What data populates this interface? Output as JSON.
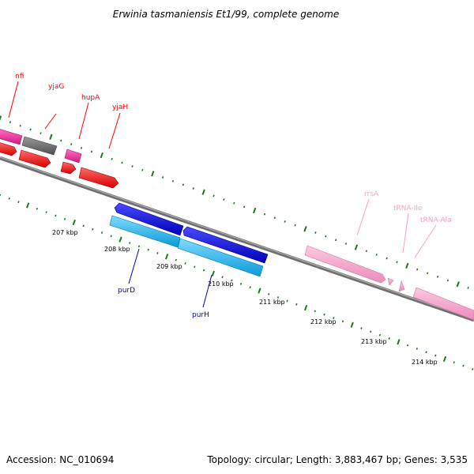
{
  "title": "Erwinia tasmaniensis Et1/99, complete genome",
  "footer": {
    "accession": "Accession: NC_010694",
    "summary": "Topology: circular; Length: 3,883,467 bp; Genes: 3,535"
  },
  "colors": {
    "backbone": "#808080",
    "tick_marks": "#1a7a1a",
    "forward_gene": "#ff1010",
    "reverse_gene": "#0a0adc",
    "cyan_gene": "#10b4ee",
    "pseudo_gene": "#6a6a6a",
    "magenta_gene": "#ee2c96",
    "rna_gene": "#f4a2c8"
  },
  "scale_labels": [
    "207 kbp",
    "208 kbp",
    "209 kbp",
    "210 kbp",
    "211 kbp",
    "212 kbp",
    "213 kbp",
    "214 kbp"
  ],
  "gene_labels": {
    "nfi": "nfi",
    "yjaG": "yjaG",
    "hupA": "hupA",
    "yjaH": "yjaH",
    "purD": "purD",
    "purH": "purH",
    "rrsA": "rrsA",
    "tRNA_Ile": "tRNA-Ile",
    "tRNA_Ala": "tRNA-Ala"
  }
}
